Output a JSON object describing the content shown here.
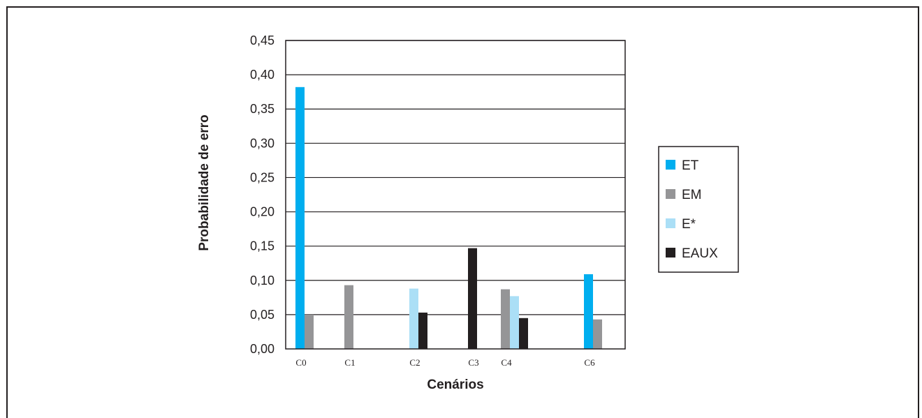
{
  "chart_data": {
    "type": "bar",
    "xlabel": "Cenários",
    "ylabel": "Probabilidade de erro",
    "ylim": [
      0,
      0.45
    ],
    "yticks": [
      "0,00",
      "0,05",
      "0,10",
      "0,15",
      "0,20",
      "0,25",
      "0,30",
      "0,35",
      "0,40",
      "0,45"
    ],
    "grid": true,
    "legend_position": "right",
    "categories": [
      "C0",
      "C1",
      "C2",
      "C3",
      "C4",
      "C6"
    ],
    "series": [
      {
        "name": "ET",
        "color": "#00aeef",
        "values": [
          0.382,
          null,
          null,
          null,
          null,
          0.109
        ]
      },
      {
        "name": "EM",
        "color": "#959597",
        "values": [
          0.05,
          0.093,
          null,
          null,
          0.087,
          0.043
        ]
      },
      {
        "name": "E*",
        "color": "#abdff6",
        "values": [
          null,
          null,
          0.088,
          null,
          0.077,
          null
        ]
      },
      {
        "name": "EAUX",
        "color": "#231f20",
        "values": [
          null,
          null,
          0.053,
          0.147,
          0.045,
          null
        ]
      }
    ]
  }
}
